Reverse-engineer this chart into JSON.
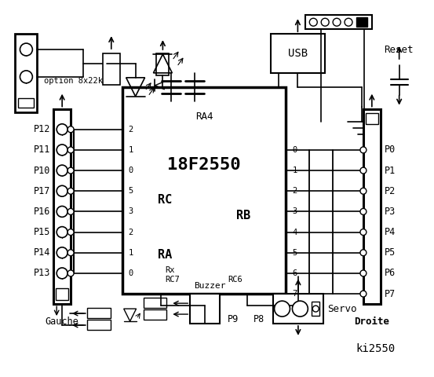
{
  "background": "#ffffff",
  "chip_label": "18F2550",
  "chip_sublabel": "RA4",
  "left_pins": [
    "P12",
    "P11",
    "P10",
    "P17",
    "P16",
    "P15",
    "P14",
    "P13"
  ],
  "left_pin_nums": [
    "2",
    "1",
    "0",
    "5",
    "3",
    "2",
    "1",
    "0"
  ],
  "right_pins": [
    "P0",
    "P1",
    "P2",
    "P3",
    "P4",
    "P5",
    "P6",
    "P7"
  ],
  "right_pin_nums": [
    "0",
    "1",
    "2",
    "3",
    "4",
    "5",
    "6",
    "7"
  ],
  "bottom_labels": [
    "Buzzer",
    "P9",
    "P8",
    "Servo"
  ],
  "signature": "ki2550",
  "gauche_label": "Gauche",
  "droite_label": "Droite",
  "option_label": "option 8x22k",
  "reset_label": "Reset",
  "usb_label": "USB",
  "rc_label": "RC",
  "ra_label": "RA",
  "rb_label": "RB",
  "rx_label": "Rx",
  "rc7_label": "RC7",
  "rc6_label": "RC6",
  "line_color": "#000000"
}
